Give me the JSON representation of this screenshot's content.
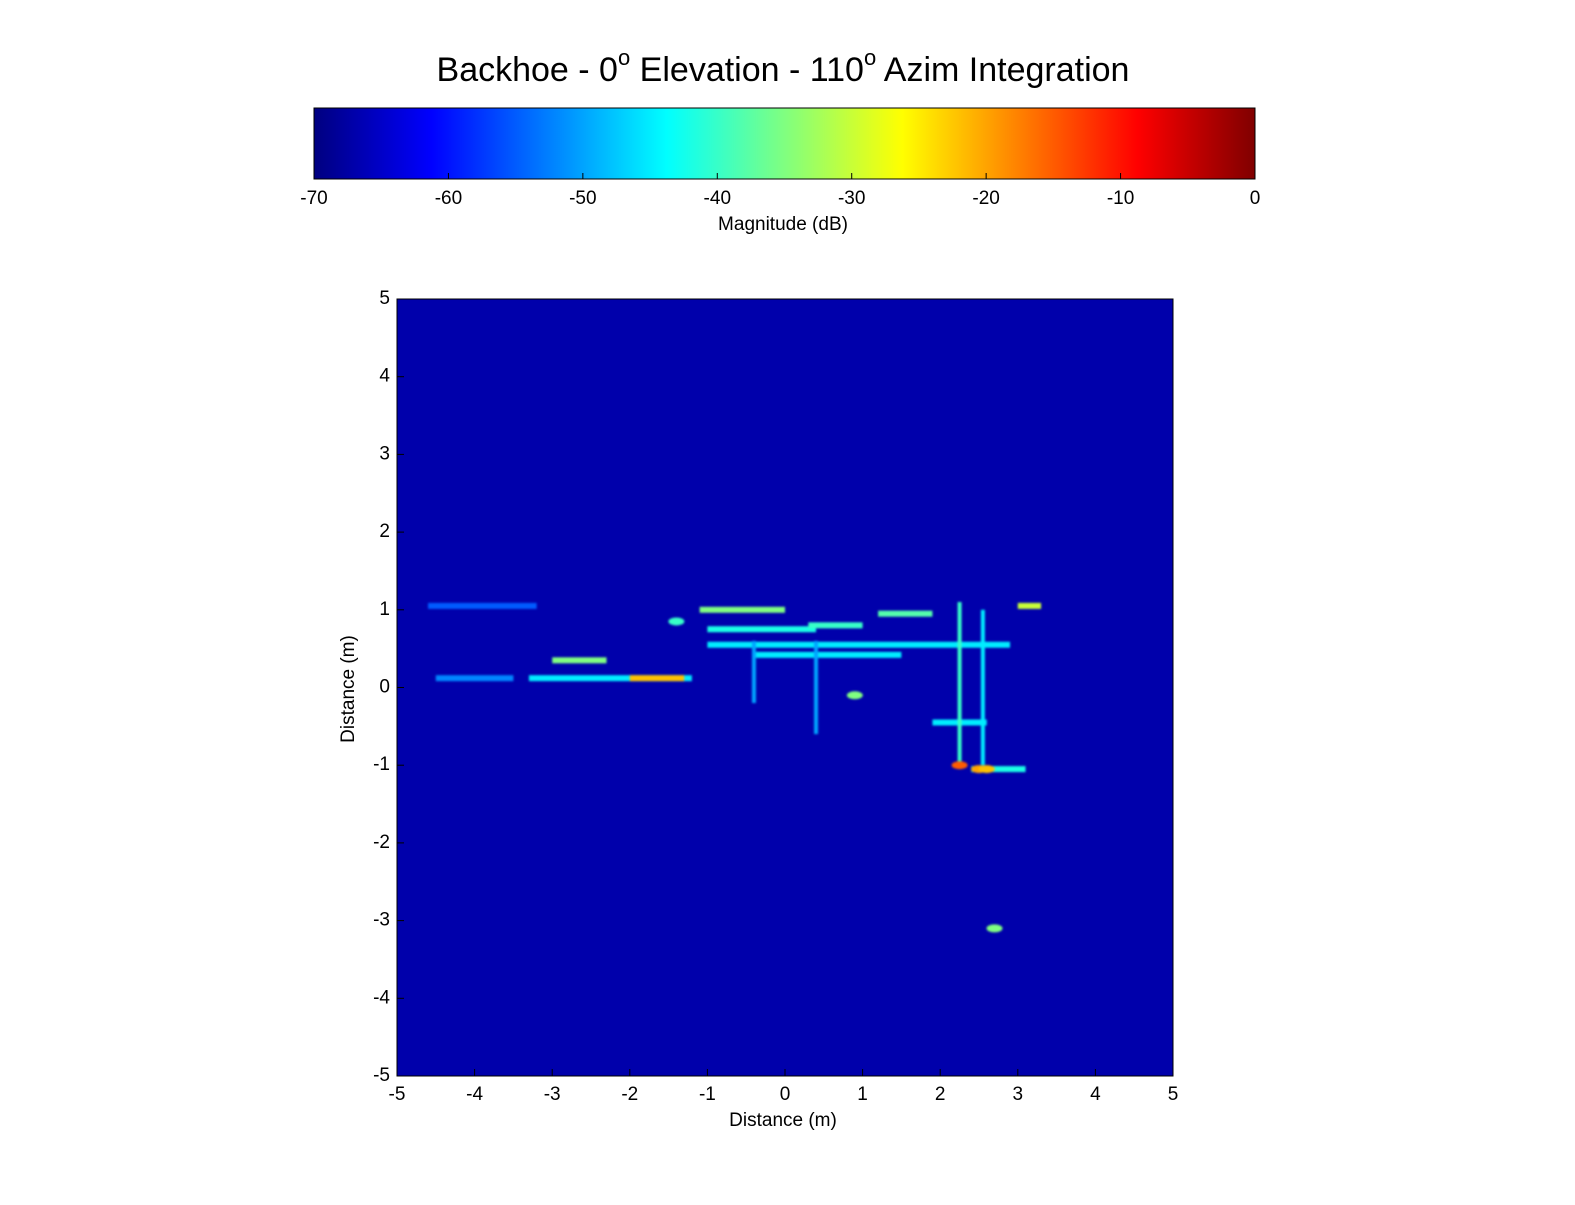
{
  "chart_data": {
    "type": "heatmap",
    "title": [
      {
        "text": "Backhoe - 0"
      },
      {
        "text": "o",
        "sup": true
      },
      {
        "text": " Elevation - 110"
      },
      {
        "text": "o",
        "sup": true
      },
      {
        "text": " Azim Integration"
      }
    ],
    "colormap": "jet",
    "colorbar": {
      "label": "Magnitude (dB)",
      "xlim": [
        -70,
        0
      ],
      "xticks": [
        -70,
        -60,
        -50,
        -40,
        -30,
        -20,
        -10,
        0
      ]
    },
    "x_label": "Distance (m)",
    "y_label": "Distance (m)",
    "xlim": [
      -5,
      5
    ],
    "ylim": [
      -5,
      5
    ],
    "xticks": [
      -5,
      -4,
      -3,
      -2,
      -1,
      0,
      1,
      2,
      3,
      4,
      5
    ],
    "yticks": [
      -5,
      -4,
      -3,
      -2,
      -1,
      0,
      1,
      2,
      3,
      4,
      5
    ],
    "background": -67,
    "h_streaks": {
      "x0": [
        -3.3,
        -2.0,
        -3.0,
        -1.1,
        1.2,
        3.0,
        -1.0,
        -0.4,
        2.4,
        1.9,
        -4.6,
        -1.0,
        0.3,
        -4.5
      ],
      "x1": [
        -1.2,
        -1.3,
        -2.3,
        0.0,
        1.9,
        3.3,
        2.9,
        1.5,
        3.1,
        2.6,
        -3.2,
        0.4,
        1.0,
        -3.5
      ],
      "y": [
        0.12,
        0.12,
        0.35,
        1.0,
        0.95,
        1.05,
        0.55,
        0.42,
        -1.05,
        -0.45,
        1.05,
        0.75,
        0.8,
        0.12
      ],
      "values": [
        -45,
        -22,
        -35,
        -35,
        -38,
        -30,
        -45,
        -45,
        -42,
        -45,
        -55,
        -42,
        -40,
        -52
      ]
    },
    "v_streaks": {
      "x": [
        2.25,
        2.55,
        -0.4,
        0.4
      ],
      "y0": [
        -1.0,
        -1.0,
        -0.2,
        -0.6
      ],
      "y1": [
        1.1,
        1.0,
        0.6,
        0.6
      ],
      "values": [
        -40,
        -45,
        -50,
        -50
      ]
    },
    "points": {
      "x": [
        2.25,
        2.5,
        2.6,
        2.7,
        0.9,
        -1.4
      ],
      "y": [
        -1.0,
        -1.05,
        -1.05,
        -3.1,
        -0.1,
        0.85
      ],
      "values": [
        -15,
        -20,
        -22,
        -35,
        -35,
        -40
      ]
    }
  }
}
